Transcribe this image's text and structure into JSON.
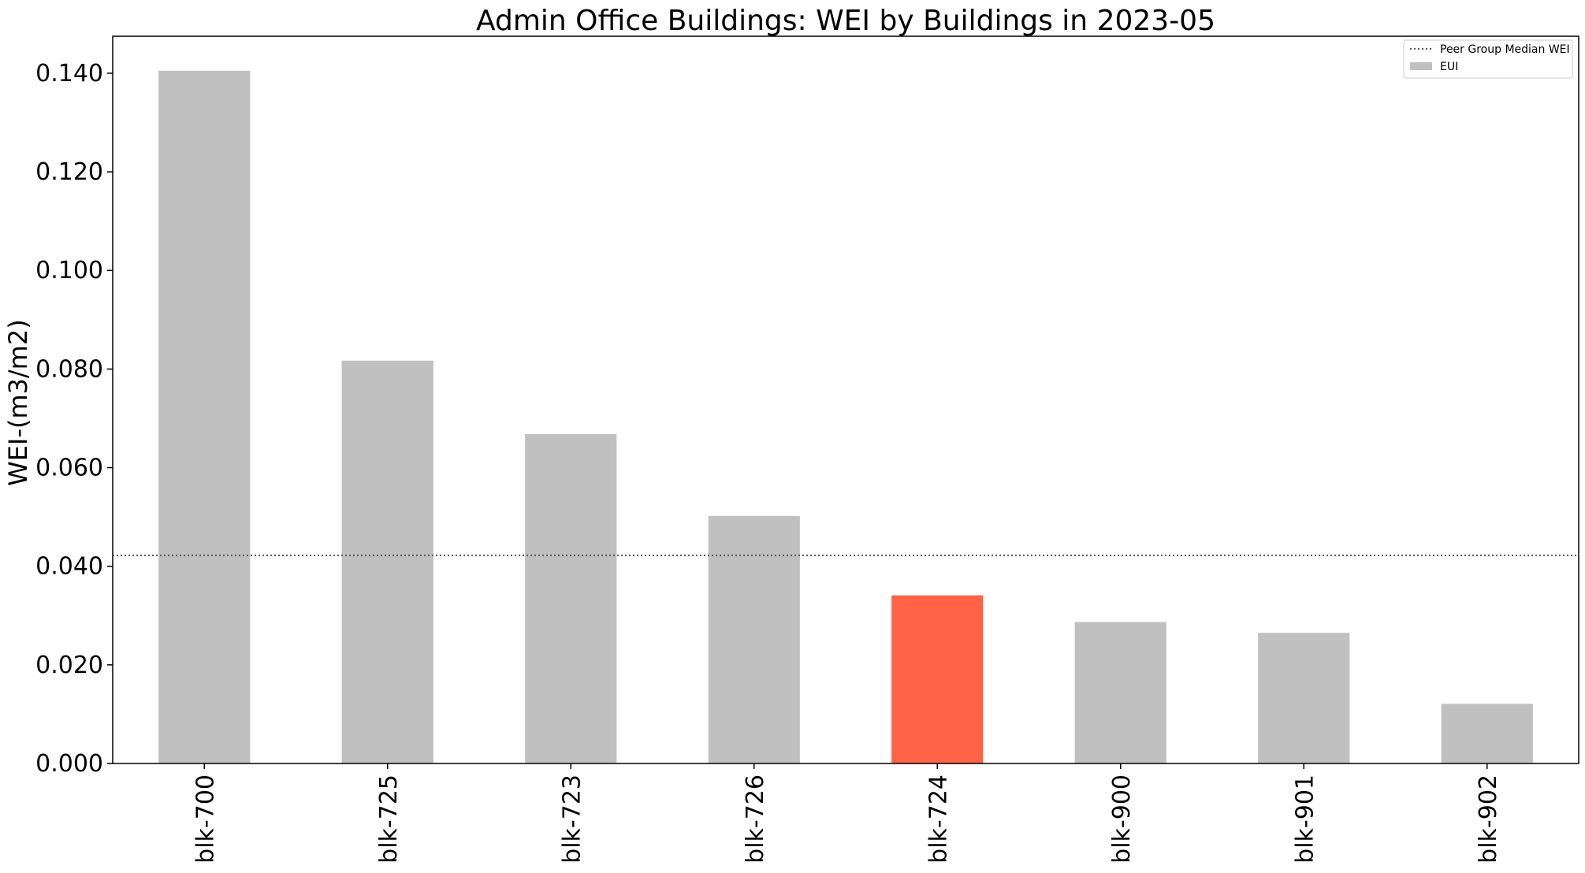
{
  "chart_data": {
    "type": "bar",
    "title": "Admin Office Buildings: WEI by Buildings in 2023-05",
    "xlabel": "",
    "ylabel": "WEI-(m3/m2)",
    "categories": [
      "blk-700",
      "blk-725",
      "blk-723",
      "blk-726",
      "blk-724",
      "blk-900",
      "blk-901",
      "blk-902"
    ],
    "values": [
      0.1405,
      0.0817,
      0.0668,
      0.0502,
      0.0341,
      0.0287,
      0.0265,
      0.0121
    ],
    "highlight_index": 4,
    "ylim": [
      0,
      0.1475
    ],
    "yticks": [
      0.0,
      0.02,
      0.04,
      0.06,
      0.08,
      0.1,
      0.12,
      0.14
    ],
    "ytick_labels": [
      "0.000",
      "0.020",
      "0.040",
      "0.060",
      "0.080",
      "0.100",
      "0.120",
      "0.140"
    ],
    "reference_line": {
      "name": "Peer Group Median WEI",
      "value": 0.0422,
      "style": "dotted"
    },
    "grid": false,
    "legend": {
      "placement": "top-right",
      "entries": [
        "Peer Group Median WEI",
        "EUI"
      ]
    },
    "colors": {
      "bar": "#c0c0c0",
      "highlight": "#ff6347",
      "reference_line": "#555555",
      "axes": "#000000"
    }
  }
}
